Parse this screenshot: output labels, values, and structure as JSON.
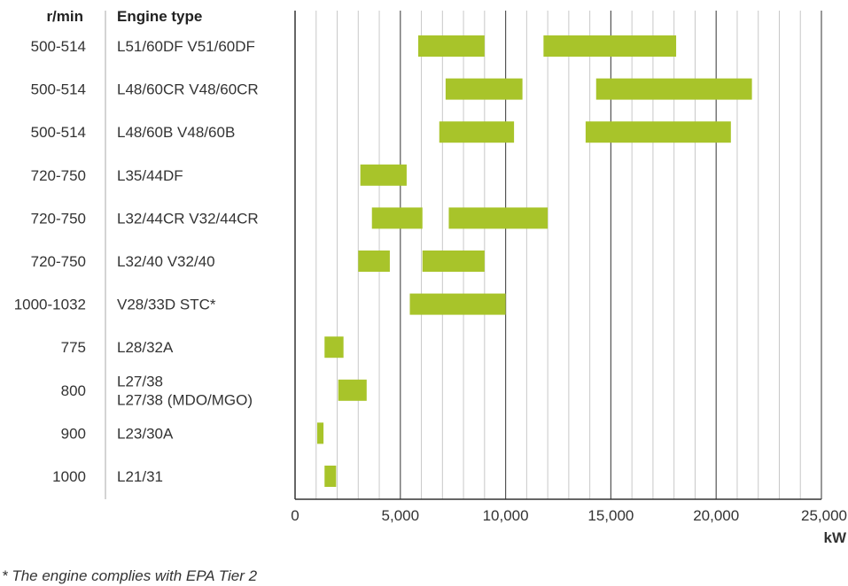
{
  "chart_data": {
    "type": "bar",
    "orientation": "horizontal-range",
    "title": "",
    "column_headers": {
      "speed": "r/min",
      "engine": "Engine type"
    },
    "xlabel": "kW",
    "xlim": [
      0,
      25000
    ],
    "x_ticks": [
      "0",
      "5,000",
      "10,000",
      "15,000",
      "20,000",
      "25,000"
    ],
    "grid": {
      "major_step": 5000,
      "minor_step": 1000,
      "direction": "vertical"
    },
    "bar_color": "#a8c42a",
    "rows": [
      {
        "speed": "500-514",
        "engine": [
          "L51/60DF V51/60DF"
        ],
        "ranges": [
          [
            5850,
            9000
          ],
          [
            11800,
            18100
          ]
        ]
      },
      {
        "speed": "500-514",
        "engine": [
          "L48/60CR V48/60CR"
        ],
        "ranges": [
          [
            7150,
            10800
          ],
          [
            14300,
            21700
          ]
        ]
      },
      {
        "speed": "500-514",
        "engine": [
          "L48/60B V48/60B"
        ],
        "ranges": [
          [
            6850,
            10400
          ],
          [
            13800,
            20700
          ]
        ]
      },
      {
        "speed": "720-750",
        "engine": [
          "L35/44DF"
        ],
        "ranges": [
          [
            3100,
            5300
          ]
        ]
      },
      {
        "speed": "720-750",
        "engine": [
          "L32/44CR V32/44CR"
        ],
        "ranges": [
          [
            3650,
            6050
          ],
          [
            7300,
            12000
          ]
        ]
      },
      {
        "speed": "720-750",
        "engine": [
          "L32/40 V32/40"
        ],
        "ranges": [
          [
            3000,
            4500
          ],
          [
            6050,
            9000
          ]
        ]
      },
      {
        "speed": "1000-1032",
        "engine": [
          "V28/33D STC*"
        ],
        "ranges": [
          [
            5450,
            10000
          ]
        ]
      },
      {
        "speed": "775",
        "engine": [
          "L28/32A"
        ],
        "ranges": [
          [
            1400,
            2300
          ]
        ]
      },
      {
        "speed": "800",
        "engine": [
          "L27/38",
          "L27/38 (MDO/MGO)"
        ],
        "ranges": [
          [
            2050,
            3400
          ]
        ]
      },
      {
        "speed": "900",
        "engine": [
          "L23/30A"
        ],
        "ranges": [
          [
            1050,
            1350
          ]
        ]
      },
      {
        "speed": "1000",
        "engine": [
          "L21/31"
        ],
        "ranges": [
          [
            1400,
            1950
          ]
        ]
      }
    ],
    "footnote": "* The engine complies with EPA Tier 2"
  }
}
